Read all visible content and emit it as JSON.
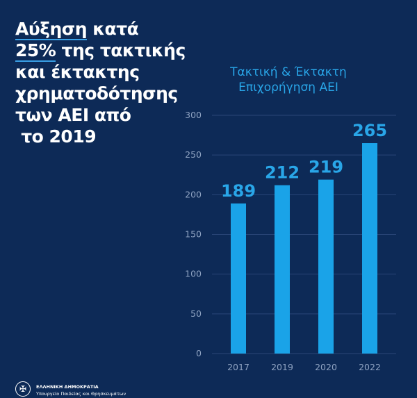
{
  "headline": {
    "line1_underlined": "Αύξηση",
    "line1_rest": " κατά",
    "line2_underlined": "25%",
    "line2_rest": " της τακτικής",
    "line3": "και έκτακτης",
    "line4": "χρηματοδότησης",
    "line5": "των ΑΕΙ από",
    "line6": " το 2019"
  },
  "footer": {
    "org": "ΕΛΛΗΝΙΚΗ ΔΗΜΟΚΡΑΤΙΑ",
    "ministry": "Υπουργείο Παιδείας και Θρησκευμάτων",
    "emblem_icon": "greek-emblem-icon"
  },
  "chart_data": {
    "type": "bar",
    "title_lines": [
      "Τακτική & Έκτακτη",
      "Επιχορήγηση ΑΕΙ"
    ],
    "categories": [
      "2017",
      "2019",
      "2020",
      "2022"
    ],
    "values": [
      189,
      212,
      219,
      265
    ],
    "data_labels": [
      "189",
      "212",
      "219",
      "265"
    ],
    "yticks": [
      0,
      50,
      100,
      150,
      200,
      250,
      300
    ],
    "ylim": [
      0,
      300
    ],
    "xlabel": "",
    "ylabel": "",
    "grid": true,
    "colors": {
      "bar": "#1aa3e8",
      "label": "#29a6e8",
      "background": "#0d2a57"
    }
  }
}
